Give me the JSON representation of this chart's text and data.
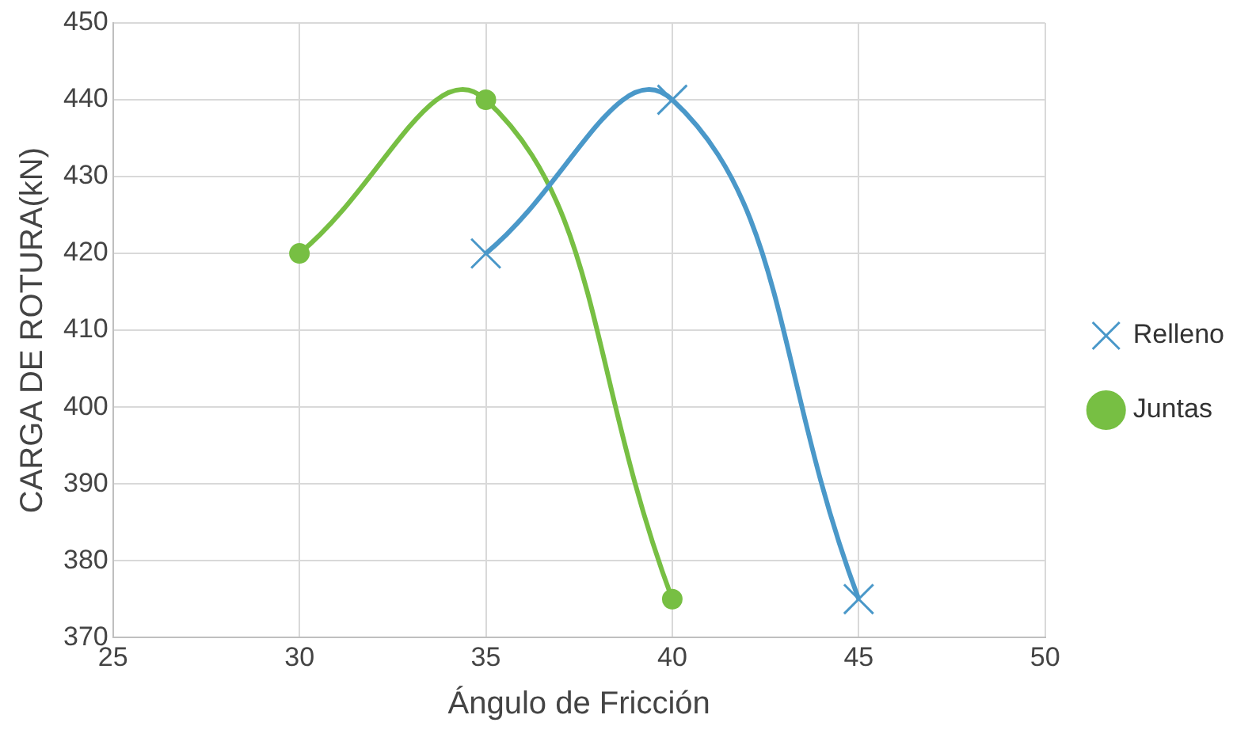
{
  "chart_data": {
    "type": "line",
    "xlabel": "Ángulo de Fricción",
    "ylabel": "CARGA DE ROTURA(kN)",
    "series": [
      {
        "name": "Relleno",
        "color": "#4a98c9",
        "marker": "cross",
        "x": [
          35,
          40,
          45
        ],
        "values": [
          420,
          440,
          375
        ]
      },
      {
        "name": "Juntas",
        "color": "#77bf43",
        "marker": "circle",
        "x": [
          30,
          35,
          40
        ],
        "values": [
          420,
          440,
          375
        ]
      }
    ],
    "xlim": [
      25,
      50
    ],
    "xticks": [
      25,
      30,
      35,
      40,
      45,
      50
    ],
    "ylim": [
      370,
      450
    ],
    "yticks": [
      370,
      380,
      390,
      400,
      410,
      420,
      430,
      440,
      450
    ],
    "grid": true,
    "legend": "right"
  }
}
